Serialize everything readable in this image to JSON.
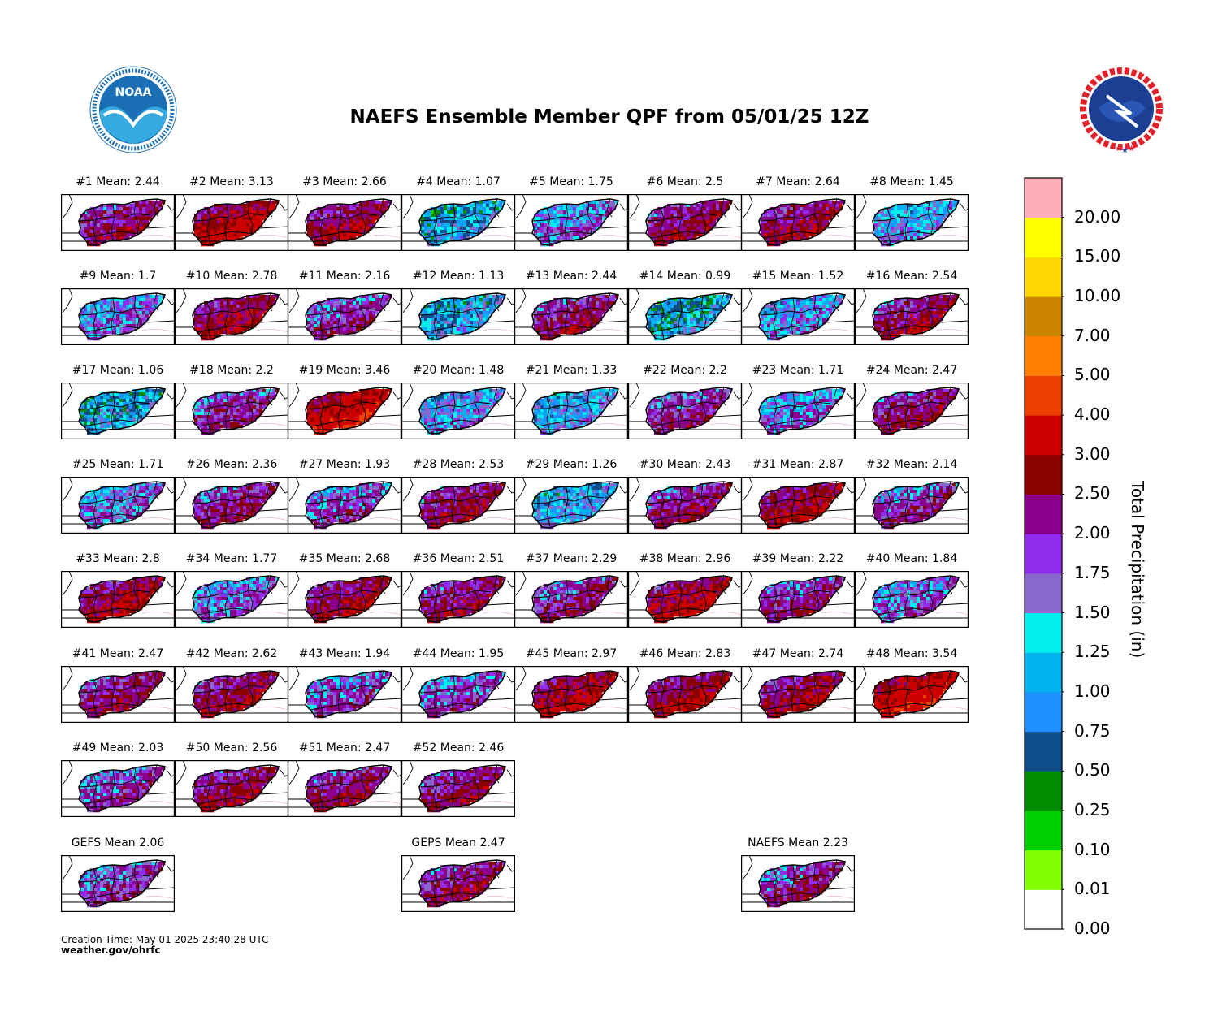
{
  "title": "NAEFS Ensemble Member QPF from 05/01/25 12Z",
  "footer": {
    "creation_time": "Creation Time: May 01 2025 23:40:28 UTC",
    "url": "weather.gov/ohrfc"
  },
  "logos": {
    "noaa": {
      "text": "NOAA",
      "ring_text": "NATIONAL OCEANIC AND ATMOSPHERIC ADMINISTRATION · U.S. DEPARTMENT OF COMMERCE"
    },
    "nws": {
      "ring_text": "NATIONAL WEATHER SERVICE"
    }
  },
  "colorbar": {
    "label": "Total Precipitation (in)",
    "ticks": [
      "0.00",
      "0.01",
      "0.10",
      "0.25",
      "0.50",
      "0.75",
      "1.00",
      "1.25",
      "1.50",
      "1.75",
      "2.00",
      "2.50",
      "3.00",
      "4.00",
      "5.00",
      "7.00",
      "10.00",
      "15.00",
      "20.00"
    ],
    "colors": [
      "#ffffff",
      "#7fff00",
      "#00cd00",
      "#008b00",
      "#104e8b",
      "#1e90ff",
      "#00b2ee",
      "#00eeee",
      "#8968cd",
      "#912cee",
      "#8b008b",
      "#8b0000",
      "#cd0000",
      "#ee4000",
      "#ff7f00",
      "#cd8500",
      "#ffd700",
      "#ffff00",
      "#ffaeb9"
    ]
  },
  "members": [
    {
      "label": "#1 Mean: 2.44",
      "mean": 2.44
    },
    {
      "label": "#2 Mean: 3.13",
      "mean": 3.13
    },
    {
      "label": "#3 Mean: 2.66",
      "mean": 2.66
    },
    {
      "label": "#4 Mean: 1.07",
      "mean": 1.07
    },
    {
      "label": "#5 Mean: 1.75",
      "mean": 1.75
    },
    {
      "label": "#6 Mean: 2.5",
      "mean": 2.5
    },
    {
      "label": "#7 Mean: 2.64",
      "mean": 2.64
    },
    {
      "label": "#8 Mean: 1.45",
      "mean": 1.45
    },
    {
      "label": "#9 Mean: 1.7",
      "mean": 1.7
    },
    {
      "label": "#10 Mean: 2.78",
      "mean": 2.78
    },
    {
      "label": "#11 Mean: 2.16",
      "mean": 2.16
    },
    {
      "label": "#12 Mean: 1.13",
      "mean": 1.13
    },
    {
      "label": "#13 Mean: 2.44",
      "mean": 2.44
    },
    {
      "label": "#14 Mean: 0.99",
      "mean": 0.99
    },
    {
      "label": "#15 Mean: 1.52",
      "mean": 1.52
    },
    {
      "label": "#16 Mean: 2.54",
      "mean": 2.54
    },
    {
      "label": "#17 Mean: 1.06",
      "mean": 1.06
    },
    {
      "label": "#18 Mean: 2.2",
      "mean": 2.2
    },
    {
      "label": "#19 Mean: 3.46",
      "mean": 3.46
    },
    {
      "label": "#20 Mean: 1.48",
      "mean": 1.48
    },
    {
      "label": "#21 Mean: 1.33",
      "mean": 1.33
    },
    {
      "label": "#22 Mean: 2.2",
      "mean": 2.2
    },
    {
      "label": "#23 Mean: 1.71",
      "mean": 1.71
    },
    {
      "label": "#24 Mean: 2.47",
      "mean": 2.47
    },
    {
      "label": "#25 Mean: 1.71",
      "mean": 1.71
    },
    {
      "label": "#26 Mean: 2.36",
      "mean": 2.36
    },
    {
      "label": "#27 Mean: 1.93",
      "mean": 1.93
    },
    {
      "label": "#28 Mean: 2.53",
      "mean": 2.53
    },
    {
      "label": "#29 Mean: 1.26",
      "mean": 1.26
    },
    {
      "label": "#30 Mean: 2.43",
      "mean": 2.43
    },
    {
      "label": "#31 Mean: 2.87",
      "mean": 2.87
    },
    {
      "label": "#32 Mean: 2.14",
      "mean": 2.14
    },
    {
      "label": "#33 Mean: 2.8",
      "mean": 2.8
    },
    {
      "label": "#34 Mean: 1.77",
      "mean": 1.77
    },
    {
      "label": "#35 Mean: 2.68",
      "mean": 2.68
    },
    {
      "label": "#36 Mean: 2.51",
      "mean": 2.51
    },
    {
      "label": "#37 Mean: 2.29",
      "mean": 2.29
    },
    {
      "label": "#38 Mean: 2.96",
      "mean": 2.96
    },
    {
      "label": "#39 Mean: 2.22",
      "mean": 2.22
    },
    {
      "label": "#40 Mean: 1.84",
      "mean": 1.84
    },
    {
      "label": "#41 Mean: 2.47",
      "mean": 2.47
    },
    {
      "label": "#42 Mean: 2.62",
      "mean": 2.62
    },
    {
      "label": "#43 Mean: 1.94",
      "mean": 1.94
    },
    {
      "label": "#44 Mean: 1.95",
      "mean": 1.95
    },
    {
      "label": "#45 Mean: 2.97",
      "mean": 2.97
    },
    {
      "label": "#46 Mean: 2.83",
      "mean": 2.83
    },
    {
      "label": "#47 Mean: 2.74",
      "mean": 2.74
    },
    {
      "label": "#48 Mean: 3.54",
      "mean": 3.54
    },
    {
      "label": "#49 Mean: 2.03",
      "mean": 2.03
    },
    {
      "label": "#50 Mean: 2.56",
      "mean": 2.56
    },
    {
      "label": "#51 Mean: 2.47",
      "mean": 2.47
    },
    {
      "label": "#52 Mean: 2.46",
      "mean": 2.46
    }
  ],
  "ensemble_means": [
    {
      "label": "GEFS Mean 2.06",
      "mean": 2.06
    },
    {
      "label": "GEPS Mean 2.47",
      "mean": 2.47
    },
    {
      "label": "NAEFS Mean 2.23",
      "mean": 2.23
    }
  ]
}
